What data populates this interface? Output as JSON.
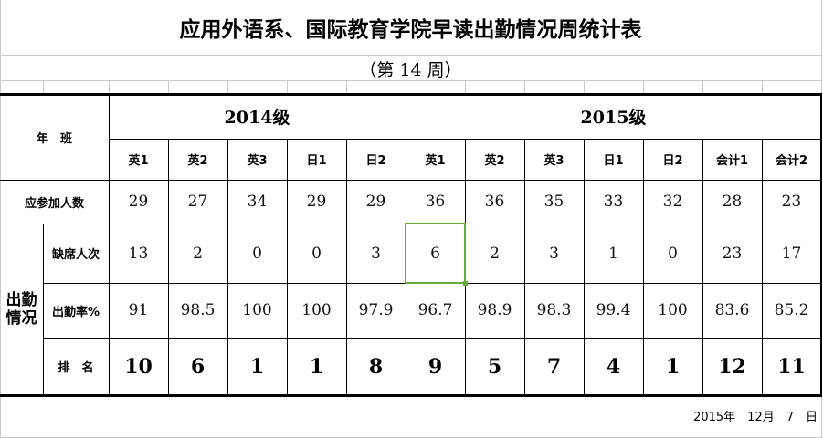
{
  "title": "应用外语系、国际教育学院早读出勤情况周统计表",
  "week": "（第 14 周）",
  "header": {
    "grade_class_label": "年　班",
    "grades": [
      {
        "label": "2014级",
        "classes": [
          "英1",
          "英2",
          "英3",
          "日1",
          "日2"
        ]
      },
      {
        "label": "2015级",
        "classes": [
          "英1",
          "英2",
          "英3",
          "日1",
          "日2",
          "会计1",
          "会计2"
        ]
      }
    ]
  },
  "rows": {
    "expected": {
      "label": "应参加人数",
      "values": [
        "29",
        "27",
        "34",
        "29",
        "29",
        "36",
        "36",
        "35",
        "33",
        "32",
        "28",
        "23"
      ]
    },
    "attendance_group_label": "出勤情况",
    "absent": {
      "label": "缺席人次",
      "values": [
        "13",
        "2",
        "0",
        "0",
        "3",
        "6",
        "2",
        "3",
        "1",
        "0",
        "23",
        "17"
      ]
    },
    "rate": {
      "label": "出勤率%",
      "values": [
        "91",
        "98.5",
        "100",
        "100",
        "97.9",
        "96.7",
        "98.9",
        "98.3",
        "99.4",
        "100",
        "83.6",
        "85.2"
      ]
    },
    "rank": {
      "label": "排　名",
      "values": [
        "10",
        "6",
        "1",
        "1",
        "8",
        "9",
        "5",
        "7",
        "4",
        "1",
        "12",
        "11"
      ]
    }
  },
  "footer_date": "2015年　12月　7　日",
  "colors": {
    "selection": "#6aaa3a",
    "gridline": "#c8c8c8"
  }
}
